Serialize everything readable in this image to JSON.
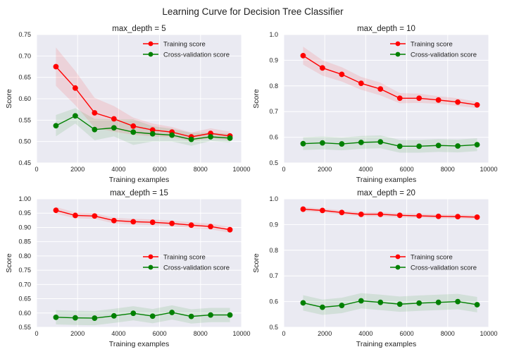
{
  "figure_title": "Learning Curve for Decision Tree Classifier",
  "colors": {
    "background": "#eaeaf2",
    "grid": "#ffffff",
    "training": "#ff0000",
    "cross_validation": "#008000"
  },
  "chart_data": [
    {
      "type": "line",
      "title": "max_depth = 5",
      "xlabel": "Training examples",
      "ylabel": "Score",
      "xlim": [
        0,
        10000
      ],
      "ylim": [
        0.45,
        0.75
      ],
      "xticks": [
        "0",
        "2000",
        "4000",
        "6000",
        "8000",
        "10000"
      ],
      "yticks": [
        "0.45",
        "0.50",
        "0.55",
        "0.60",
        "0.65",
        "0.70",
        "0.75"
      ],
      "grid": true,
      "legend_position": "top-right",
      "x": [
        943,
        1887,
        2830,
        3774,
        4717,
        5661,
        6604,
        7548,
        8491,
        9435
      ],
      "series": [
        {
          "name": "Training score",
          "color": "#ff0000",
          "values": [
            0.675,
            0.625,
            0.567,
            0.553,
            0.536,
            0.527,
            0.522,
            0.511,
            0.519,
            0.513
          ],
          "band": [
            0.045,
            0.04,
            0.035,
            0.03,
            0.02,
            0.015,
            0.012,
            0.01,
            0.012,
            0.01
          ]
        },
        {
          "name": "Cross-validation score",
          "color": "#008000",
          "values": [
            0.537,
            0.56,
            0.528,
            0.532,
            0.522,
            0.518,
            0.515,
            0.505,
            0.511,
            0.508
          ],
          "band": [
            0.025,
            0.018,
            0.025,
            0.02,
            0.03,
            0.018,
            0.015,
            0.015,
            0.01,
            0.01
          ]
        }
      ]
    },
    {
      "type": "line",
      "title": "max_depth = 10",
      "xlabel": "Training examples",
      "ylabel": "Score",
      "xlim": [
        0,
        10000
      ],
      "ylim": [
        0.5,
        1.0
      ],
      "xticks": [
        "0",
        "2000",
        "4000",
        "6000",
        "8000",
        "10000"
      ],
      "yticks": [
        "0.5",
        "0.6",
        "0.7",
        "0.8",
        "0.9",
        "1.0"
      ],
      "grid": true,
      "legend_position": "top-right",
      "x": [
        943,
        1887,
        2830,
        3774,
        4717,
        5661,
        6604,
        7548,
        8491,
        9435
      ],
      "series": [
        {
          "name": "Training score",
          "color": "#ff0000",
          "values": [
            0.918,
            0.87,
            0.845,
            0.81,
            0.788,
            0.752,
            0.752,
            0.745,
            0.737,
            0.726
          ],
          "band": [
            0.035,
            0.03,
            0.028,
            0.025,
            0.025,
            0.02,
            0.018,
            0.015,
            0.015,
            0.012
          ]
        },
        {
          "name": "Cross-validation score",
          "color": "#008000",
          "values": [
            0.575,
            0.578,
            0.574,
            0.58,
            0.582,
            0.565,
            0.565,
            0.568,
            0.566,
            0.571
          ],
          "band": [
            0.025,
            0.025,
            0.025,
            0.025,
            0.025,
            0.025,
            0.025,
            0.025,
            0.025,
            0.025
          ]
        }
      ]
    },
    {
      "type": "line",
      "title": "max_depth = 15",
      "xlabel": "Training examples",
      "ylabel": "Score",
      "xlim": [
        0,
        10000
      ],
      "ylim": [
        0.55,
        1.0
      ],
      "xticks": [
        "0",
        "2000",
        "4000",
        "6000",
        "8000",
        "10000"
      ],
      "yticks": [
        "0.55",
        "0.60",
        "0.65",
        "0.70",
        "0.75",
        "0.80",
        "0.85",
        "0.90",
        "0.95",
        "1.00"
      ],
      "grid": true,
      "legend_position": "center-right",
      "x": [
        943,
        1887,
        2830,
        3774,
        4717,
        5661,
        6604,
        7548,
        8491,
        9435
      ],
      "series": [
        {
          "name": "Training score",
          "color": "#ff0000",
          "values": [
            0.96,
            0.942,
            0.94,
            0.924,
            0.92,
            0.918,
            0.914,
            0.908,
            0.903,
            0.892
          ],
          "band": [
            0.012,
            0.01,
            0.01,
            0.01,
            0.01,
            0.01,
            0.01,
            0.01,
            0.01,
            0.01
          ]
        },
        {
          "name": "Cross-validation score",
          "color": "#008000",
          "values": [
            0.585,
            0.583,
            0.582,
            0.59,
            0.599,
            0.589,
            0.602,
            0.588,
            0.593,
            0.593
          ],
          "band": [
            0.025,
            0.025,
            0.025,
            0.025,
            0.025,
            0.025,
            0.025,
            0.025,
            0.025,
            0.025
          ]
        }
      ]
    },
    {
      "type": "line",
      "title": "max_depth = 20",
      "xlabel": "Training examples",
      "ylabel": "Score",
      "xlim": [
        0,
        10000
      ],
      "ylim": [
        0.5,
        1.0
      ],
      "xticks": [
        "0",
        "2000",
        "4000",
        "6000",
        "8000",
        "10000"
      ],
      "yticks": [
        "0.5",
        "0.6",
        "0.7",
        "0.8",
        "0.9",
        "1.0"
      ],
      "grid": true,
      "legend_position": "center-right",
      "x": [
        943,
        1887,
        2830,
        3774,
        4717,
        5661,
        6604,
        7548,
        8491,
        9435
      ],
      "series": [
        {
          "name": "Training score",
          "color": "#ff0000",
          "values": [
            0.96,
            0.955,
            0.947,
            0.94,
            0.94,
            0.936,
            0.934,
            0.932,
            0.931,
            0.929
          ],
          "band": [
            0.008,
            0.008,
            0.008,
            0.008,
            0.008,
            0.008,
            0.008,
            0.008,
            0.008,
            0.008
          ]
        },
        {
          "name": "Cross-validation score",
          "color": "#008000",
          "values": [
            0.595,
            0.578,
            0.585,
            0.603,
            0.597,
            0.59,
            0.594,
            0.597,
            0.6,
            0.588
          ],
          "band": [
            0.03,
            0.03,
            0.03,
            0.03,
            0.03,
            0.03,
            0.03,
            0.03,
            0.03,
            0.03
          ]
        }
      ]
    }
  ]
}
